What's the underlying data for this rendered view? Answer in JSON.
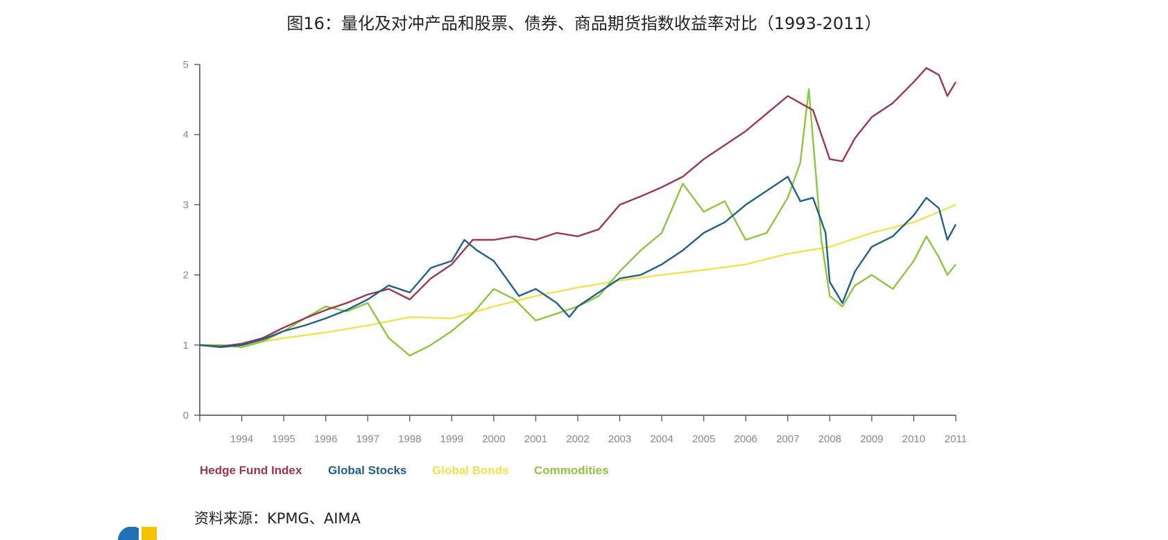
{
  "title": "图16：量化及对冲产品和股票、债券、商品期货指数收益率对比（1993-2011）",
  "source": "资料来源：KPMG、AIMA",
  "chart_data": {
    "type": "line",
    "title": "图16：量化及对冲产品和股票、债券、商品期货指数收益率对比（1993-2011）",
    "xlabel": "",
    "ylabel": "",
    "xlim": [
      1993,
      2011
    ],
    "ylim": [
      0,
      5
    ],
    "yticks": [
      "0",
      "1",
      "2",
      "3",
      "4",
      "5"
    ],
    "xticks": [
      "1994",
      "1995",
      "1996",
      "1997",
      "1998",
      "1999",
      "2000",
      "2001",
      "2002",
      "2003",
      "2004",
      "2005",
      "2006",
      "2007",
      "2008",
      "2009",
      "2010",
      "2011"
    ],
    "grid": false,
    "legend": "bottom-left",
    "series": [
      {
        "name": "Hedge Fund Index",
        "color": "#9b3550",
        "x": [
          1993,
          1993.5,
          1994,
          1994.5,
          1995,
          1995.5,
          1996,
          1996.5,
          1997,
          1997.5,
          1998,
          1998.5,
          1999,
          1999.5,
          2000,
          2000.5,
          2001,
          2001.5,
          2002,
          2002.5,
          2003,
          2003.5,
          2004,
          2004.5,
          2005,
          2005.5,
          2006,
          2006.5,
          2007,
          2007.3,
          2007.6,
          2008,
          2008.3,
          2008.6,
          2009,
          2009.5,
          2010,
          2010.3,
          2010.6,
          2010.8,
          2011
        ],
        "y": [
          1.0,
          0.98,
          1.02,
          1.1,
          1.25,
          1.38,
          1.5,
          1.6,
          1.72,
          1.8,
          1.65,
          1.95,
          2.15,
          2.5,
          2.5,
          2.55,
          2.5,
          2.6,
          2.55,
          2.65,
          3.0,
          3.12,
          3.25,
          3.4,
          3.65,
          3.85,
          4.05,
          4.3,
          4.55,
          4.45,
          4.35,
          3.65,
          3.62,
          3.95,
          4.25,
          4.45,
          4.75,
          4.95,
          4.85,
          4.55,
          4.75
        ]
      },
      {
        "name": "Global Stocks",
        "color": "#1f5f8b",
        "x": [
          1993,
          1993.5,
          1994,
          1994.5,
          1995,
          1995.5,
          1996,
          1996.5,
          1997,
          1997.5,
          1998,
          1998.5,
          1999,
          1999.3,
          1999.6,
          2000,
          2000.3,
          2000.6,
          2001,
          2001.5,
          2001.8,
          2002,
          2002.5,
          2003,
          2003.5,
          2004,
          2004.5,
          2005,
          2005.5,
          2006,
          2006.5,
          2007,
          2007.3,
          2007.6,
          2007.9,
          2008,
          2008.3,
          2008.6,
          2009,
          2009.5,
          2010,
          2010.3,
          2010.6,
          2010.8,
          2011
        ],
        "y": [
          1.0,
          0.97,
          1.0,
          1.08,
          1.2,
          1.28,
          1.38,
          1.5,
          1.65,
          1.85,
          1.75,
          2.1,
          2.2,
          2.5,
          2.35,
          2.2,
          1.95,
          1.7,
          1.8,
          1.6,
          1.4,
          1.55,
          1.75,
          1.95,
          2.0,
          2.15,
          2.35,
          2.6,
          2.75,
          3.0,
          3.2,
          3.4,
          3.05,
          3.1,
          2.6,
          1.9,
          1.6,
          2.05,
          2.4,
          2.55,
          2.85,
          3.1,
          2.95,
          2.5,
          2.72
        ]
      },
      {
        "name": "Global Bonds",
        "color": "#f2e14a",
        "x": [
          1993,
          1994,
          1995,
          1996,
          1997,
          1998,
          1999,
          2000,
          2001,
          2002,
          2003,
          2004,
          2005,
          2006,
          2007,
          2008,
          2009,
          2010,
          2011
        ],
        "y": [
          1.0,
          1.0,
          1.1,
          1.18,
          1.28,
          1.4,
          1.38,
          1.55,
          1.7,
          1.82,
          1.92,
          2.0,
          2.07,
          2.15,
          2.3,
          2.4,
          2.6,
          2.75,
          3.0
        ]
      },
      {
        "name": "Commodities",
        "color": "#8cc63f",
        "x": [
          1993,
          1993.5,
          1994,
          1994.5,
          1995,
          1995.5,
          1996,
          1996.5,
          1997,
          1997.5,
          1998,
          1998.5,
          1999,
          1999.5,
          2000,
          2000.5,
          2001,
          2001.5,
          2002,
          2002.5,
          2003,
          2003.5,
          2004,
          2004.5,
          2005,
          2005.5,
          2006,
          2006.5,
          2007,
          2007.3,
          2007.5,
          2007.8,
          2008,
          2008.3,
          2008.6,
          2009,
          2009.5,
          2010,
          2010.3,
          2010.6,
          2010.8,
          2011
        ],
        "y": [
          1.0,
          1.0,
          0.97,
          1.05,
          1.2,
          1.38,
          1.55,
          1.48,
          1.6,
          1.1,
          0.85,
          1.0,
          1.2,
          1.45,
          1.8,
          1.65,
          1.35,
          1.45,
          1.55,
          1.7,
          2.05,
          2.35,
          2.6,
          3.3,
          2.9,
          3.05,
          2.5,
          2.6,
          3.1,
          3.6,
          4.65,
          2.5,
          1.7,
          1.55,
          1.85,
          2.0,
          1.8,
          2.2,
          2.55,
          2.25,
          2.0,
          2.15
        ]
      }
    ]
  }
}
